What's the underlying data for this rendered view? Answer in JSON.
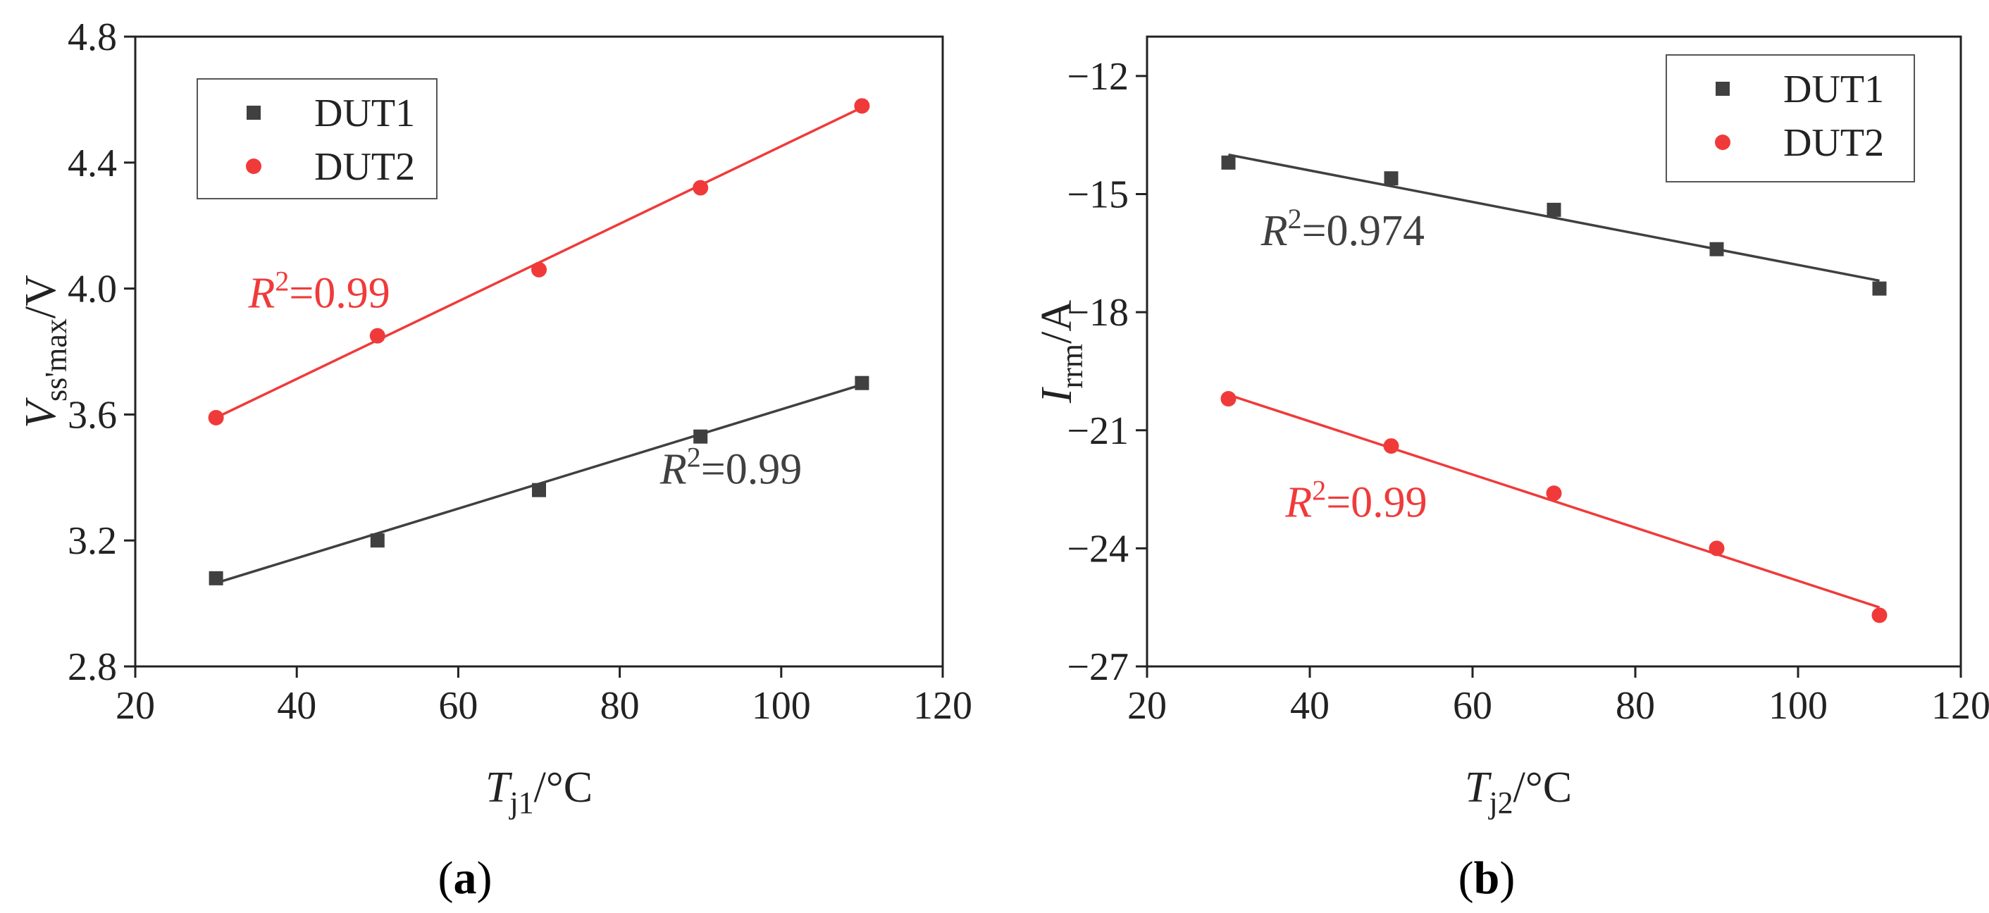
{
  "colors": {
    "dut1": "#404040",
    "dut2": "#f03a3a",
    "axis": "#222222"
  },
  "chart_data": [
    {
      "id": "a",
      "type": "scatter",
      "panel_label": "a",
      "xlabel": {
        "main": "T",
        "sub": "j1",
        "unit": "/°C"
      },
      "ylabel": {
        "main": "V",
        "sub": "ss'max",
        "unit": "/V"
      },
      "xlim": [
        20,
        120
      ],
      "ylim": [
        2.8,
        4.8
      ],
      "xticks": [
        20,
        40,
        60,
        80,
        100,
        120
      ],
      "yticks": [
        2.8,
        3.2,
        3.6,
        4.0,
        4.4,
        4.8
      ],
      "ytick_decimals": 1,
      "legend_position": "top-left",
      "x": [
        30,
        50,
        70,
        90,
        110
      ],
      "series": [
        {
          "name": "DUT1",
          "marker": "square",
          "color": "#404040",
          "values": [
            3.08,
            3.2,
            3.36,
            3.53,
            3.7
          ],
          "fit": [
            3.065,
            3.695
          ],
          "r2_text": "=0.99",
          "r2_label_at": [
            85,
            3.38
          ]
        },
        {
          "name": "DUT2",
          "marker": "circle",
          "color": "#f03a3a",
          "values": [
            3.59,
            3.85,
            4.06,
            4.32,
            4.58
          ],
          "fit": [
            3.59,
            4.575
          ],
          "r2_text": "=0.99",
          "r2_label_at": [
            34,
            3.94
          ]
        }
      ],
      "r2_prefix": "R",
      "r2_power": "2"
    },
    {
      "id": "b",
      "type": "scatter",
      "panel_label": "b",
      "xlabel": {
        "main": "T",
        "sub": "j2",
        "unit": "/°C"
      },
      "ylabel": {
        "main": "I",
        "sub": "rrm",
        "unit": "/A"
      },
      "xlim": [
        20,
        120
      ],
      "ylim": [
        -27,
        -11
      ],
      "xticks": [
        20,
        40,
        60,
        80,
        100,
        120
      ],
      "yticks": [
        -27,
        -24,
        -21,
        -18,
        -15,
        -12
      ],
      "ytick_decimals": 0,
      "legend_position": "top-right",
      "x": [
        30,
        50,
        70,
        90,
        110
      ],
      "series": [
        {
          "name": "DUT1",
          "marker": "square",
          "color": "#404040",
          "values": [
            -14.2,
            -14.6,
            -15.4,
            -16.4,
            -17.4
          ],
          "fit": [
            -14.0,
            -17.2
          ],
          "r2_text": "=0.974",
          "r2_label_at": [
            34,
            -16.3
          ]
        },
        {
          "name": "DUT2",
          "marker": "circle",
          "color": "#f03a3a",
          "values": [
            -20.2,
            -21.4,
            -22.6,
            -24.0,
            -25.7
          ],
          "fit": [
            -20.1,
            -25.5
          ],
          "r2_text": "=0.99",
          "r2_label_at": [
            37,
            -23.2
          ]
        }
      ],
      "r2_prefix": "R",
      "r2_power": "2"
    }
  ]
}
